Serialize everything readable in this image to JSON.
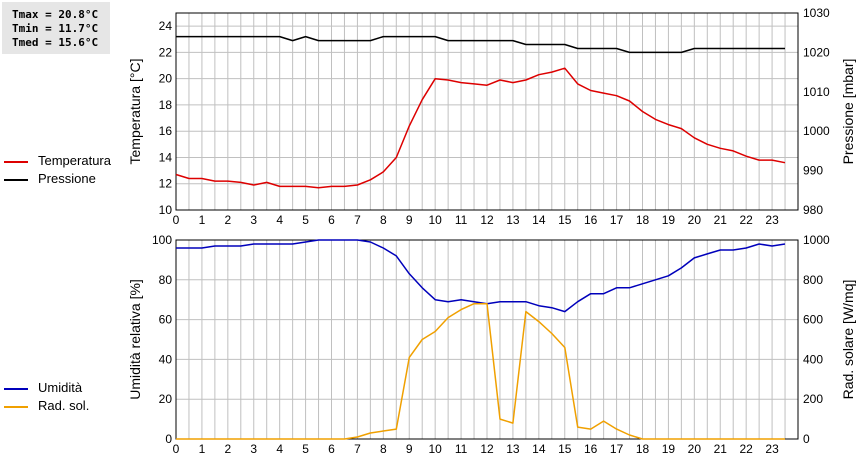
{
  "stats": {
    "tmax": "Tmax = 20.8°C",
    "tmin": "Tmin = 11.7°C",
    "tmed": "Tmed = 15.6°C"
  },
  "colors": {
    "temperatura": "#dd0000",
    "pressione": "#000000",
    "umidita": "#0000bb",
    "radiazione": "#f0a000",
    "grid": "#c0c0c0"
  },
  "chart_data": [
    {
      "type": "line",
      "xlabel": "",
      "x_ticks": [
        "0",
        "1",
        "2",
        "3",
        "4",
        "5",
        "6",
        "7",
        "8",
        "9",
        "10",
        "11",
        "12",
        "13",
        "14",
        "15",
        "16",
        "17",
        "18",
        "19",
        "20",
        "21",
        "22",
        "23"
      ],
      "xlim": [
        0,
        24
      ],
      "ylabel": "Temperatura [°C]",
      "ylim": [
        10,
        25
      ],
      "y_ticks": [
        10,
        12,
        14,
        16,
        18,
        20,
        22,
        24
      ],
      "y2label": "Pressione [mbar]",
      "y2lim": [
        980,
        1030
      ],
      "y2_ticks": [
        980,
        990,
        1000,
        1010,
        1020,
        1030
      ],
      "legend": [
        "Temperatura",
        "Pressione"
      ],
      "legend_position": "left",
      "grid": true,
      "series": [
        {
          "name": "Temperatura",
          "axis": "left",
          "x": [
            0,
            0.5,
            1,
            1.5,
            2,
            2.5,
            3,
            3.5,
            4,
            4.5,
            5,
            5.5,
            6,
            6.5,
            7,
            7.5,
            8,
            8.5,
            9,
            9.5,
            10,
            10.5,
            11,
            11.5,
            12,
            12.5,
            13,
            13.5,
            14,
            14.5,
            15,
            15.5,
            16,
            16.5,
            17,
            17.5,
            18,
            18.5,
            19,
            19.5,
            20,
            20.5,
            21,
            21.5,
            22,
            22.5,
            23,
            23.5
          ],
          "values": [
            12.7,
            12.4,
            12.4,
            12.2,
            12.2,
            12.1,
            11.9,
            12.1,
            11.8,
            11.8,
            11.8,
            11.7,
            11.8,
            11.8,
            11.9,
            12.3,
            12.9,
            14.0,
            16.4,
            18.4,
            20.0,
            19.9,
            19.7,
            19.6,
            19.5,
            19.9,
            19.7,
            19.9,
            20.3,
            20.5,
            20.8,
            19.6,
            19.1,
            18.9,
            18.7,
            18.3,
            17.5,
            16.9,
            16.5,
            16.2,
            15.5,
            15.0,
            14.7,
            14.5,
            14.1,
            13.8,
            13.8,
            13.6
          ]
        },
        {
          "name": "Pressione",
          "axis": "right",
          "x": [
            0,
            0.5,
            1,
            1.5,
            2,
            2.5,
            3,
            3.5,
            4,
            4.5,
            5,
            5.5,
            6,
            6.5,
            7,
            7.5,
            8,
            8.5,
            9,
            9.5,
            10,
            10.5,
            11,
            11.5,
            12,
            12.5,
            13,
            13.5,
            14,
            14.5,
            15,
            15.5,
            16,
            16.5,
            17,
            17.5,
            18,
            18.5,
            19,
            19.5,
            20,
            20.5,
            21,
            21.5,
            22,
            22.5,
            23,
            23.5
          ],
          "values": [
            1024,
            1024,
            1024,
            1024,
            1024,
            1024,
            1024,
            1024,
            1024,
            1023,
            1024,
            1023,
            1023,
            1023,
            1023,
            1023,
            1024,
            1024,
            1024,
            1024,
            1024,
            1023,
            1023,
            1023,
            1023,
            1023,
            1023,
            1022,
            1022,
            1022,
            1022,
            1021,
            1021,
            1021,
            1021,
            1020,
            1020,
            1020,
            1020,
            1020,
            1021,
            1021,
            1021,
            1021,
            1021,
            1021,
            1021,
            1021
          ]
        }
      ]
    },
    {
      "type": "line",
      "xlabel": "",
      "x_ticks": [
        "0",
        "1",
        "2",
        "3",
        "4",
        "5",
        "6",
        "7",
        "8",
        "9",
        "10",
        "11",
        "12",
        "13",
        "14",
        "15",
        "16",
        "17",
        "18",
        "19",
        "20",
        "21",
        "22",
        "23"
      ],
      "xlim": [
        0,
        24
      ],
      "ylabel": "Umidità relativa [%]",
      "ylim": [
        0,
        100
      ],
      "y_ticks": [
        0,
        20,
        40,
        60,
        80,
        100
      ],
      "y2label": "Rad. solare [W/mq]",
      "y2lim": [
        0,
        1000
      ],
      "y2_ticks": [
        0,
        200,
        400,
        600,
        800,
        1000
      ],
      "legend": [
        "Umidità",
        "Rad. sol."
      ],
      "legend_position": "left",
      "grid": true,
      "series": [
        {
          "name": "Umidità",
          "axis": "left",
          "x": [
            0,
            0.5,
            1,
            1.5,
            2,
            2.5,
            3,
            3.5,
            4,
            4.5,
            5,
            5.5,
            6,
            6.5,
            7,
            7.5,
            8,
            8.5,
            9,
            9.5,
            10,
            10.5,
            11,
            11.5,
            12,
            12.5,
            13,
            13.5,
            14,
            14.5,
            15,
            15.5,
            16,
            16.5,
            17,
            17.5,
            18,
            18.5,
            19,
            19.5,
            20,
            20.5,
            21,
            21.5,
            22,
            22.5,
            23,
            23.5
          ],
          "values": [
            96,
            96,
            96,
            97,
            97,
            97,
            98,
            98,
            98,
            98,
            99,
            100,
            100,
            100,
            100,
            99,
            96,
            92,
            83,
            76,
            70,
            69,
            70,
            69,
            68,
            69,
            69,
            69,
            67,
            66,
            64,
            69,
            73,
            73,
            76,
            76,
            78,
            80,
            82,
            86,
            91,
            93,
            95,
            95,
            96,
            98,
            97,
            98
          ]
        },
        {
          "name": "Rad. sol.",
          "axis": "right",
          "x": [
            0,
            0.5,
            1,
            1.5,
            2,
            2.5,
            3,
            3.5,
            4,
            4.5,
            5,
            5.5,
            6,
            6.5,
            7,
            7.5,
            8,
            8.5,
            9,
            9.5,
            10,
            10.5,
            11,
            11.5,
            12,
            12.5,
            13,
            13.5,
            14,
            14.5,
            15,
            15.5,
            16,
            16.5,
            17,
            17.5,
            18,
            18.5,
            19,
            19.5,
            20,
            20.5,
            21,
            21.5,
            22,
            22.5,
            23,
            23.5
          ],
          "values": [
            0,
            0,
            0,
            0,
            0,
            0,
            0,
            0,
            0,
            0,
            0,
            0,
            0,
            0,
            10,
            30,
            40,
            50,
            410,
            500,
            540,
            610,
            650,
            680,
            680,
            100,
            80,
            640,
            590,
            530,
            460,
            60,
            50,
            90,
            50,
            20,
            0,
            0,
            0,
            0,
            0,
            0,
            0,
            0,
            0,
            0,
            0,
            0
          ]
        }
      ]
    }
  ]
}
